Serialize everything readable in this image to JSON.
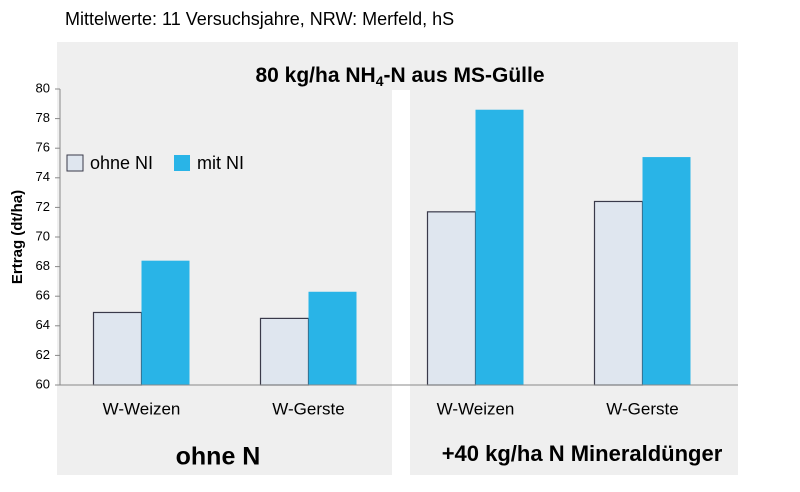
{
  "chart_data": {
    "type": "bar",
    "title": "Mittelwerte: 11 Versuchsjahre, NRW: Merfeld,  hS",
    "subtitle": [
      "80 kg/ha NH",
      "4",
      "-N aus MS-Gülle"
    ],
    "y_label": "Ertrag (dt/ha)",
    "groups": [
      "ohne N",
      "+40 kg/ha N Mineraldünger"
    ],
    "categories": [
      "W-Weizen",
      "W-Gerste",
      "W-Weizen",
      "W-Gerste"
    ],
    "series": [
      {
        "name": "ohne NI",
        "color": "#dfe6ef",
        "values": [
          64.9,
          64.5,
          71.7,
          72.4
        ]
      },
      {
        "name": "mit NI",
        "color": "#29b4e7",
        "values": [
          68.4,
          66.3,
          78.6,
          75.4
        ]
      }
    ],
    "ylim": [
      60,
      80
    ],
    "yticks": [
      60,
      62,
      64,
      66,
      68,
      70,
      72,
      74,
      76,
      78,
      80
    ]
  }
}
